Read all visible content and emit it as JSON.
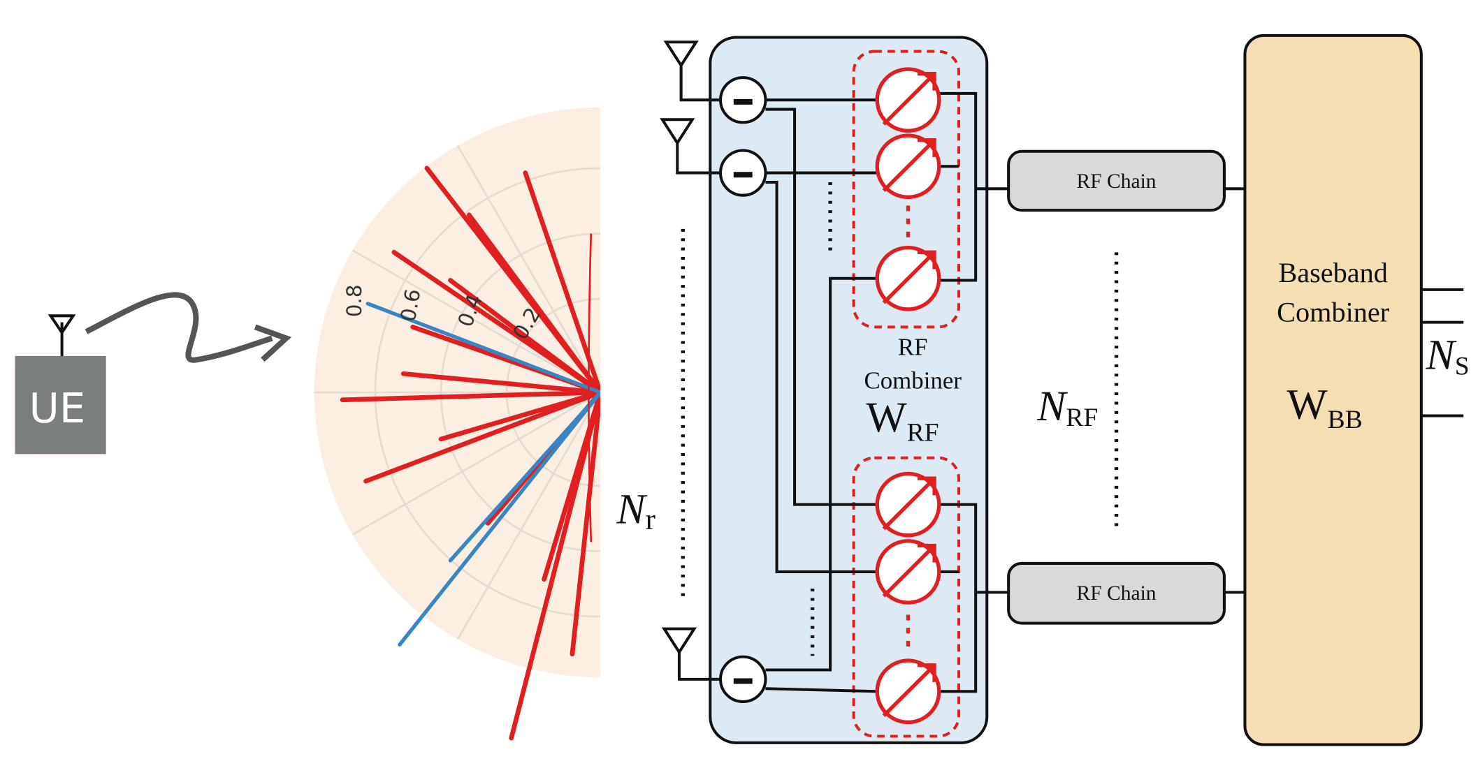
{
  "ue": {
    "label": "UE"
  },
  "polar_plot": {
    "ring_labels": [
      "0.8",
      "0.6",
      "0.4",
      "0.2"
    ]
  },
  "antenna_array": {
    "count_label": {
      "symbol": "N",
      "subscript": "r"
    }
  },
  "rf_combiner": {
    "label_lines": [
      "RF",
      "Combiner"
    ],
    "matrix": {
      "symbol": "W",
      "subscript": "RF"
    }
  },
  "rf_chains": {
    "labels": [
      "RF Chain",
      "RF Chain"
    ],
    "count_label": {
      "symbol": "N",
      "subscript": "RF"
    }
  },
  "baseband_combiner": {
    "label_lines": [
      "Baseband",
      "Combiner"
    ],
    "matrix": {
      "symbol": "W",
      "subscript": "BB"
    }
  },
  "streams": {
    "count_label": {
      "symbol": "N",
      "subscript": "S"
    }
  }
}
